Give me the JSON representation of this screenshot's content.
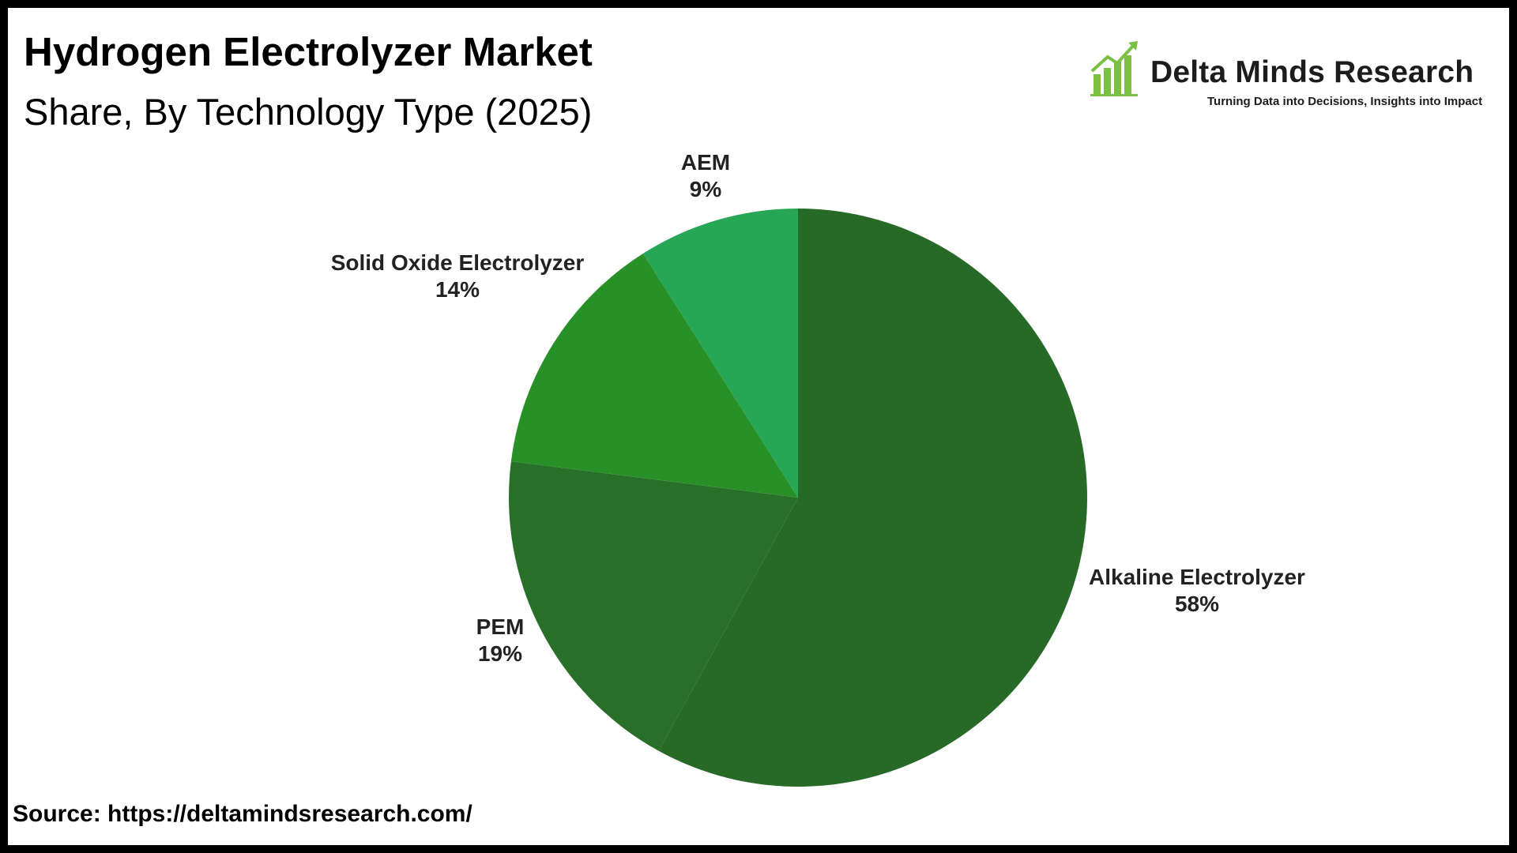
{
  "header": {
    "title": "Hydrogen Electrolyzer Market",
    "subtitle": "Share, By Technology Type (2025)"
  },
  "logo": {
    "name": "Delta Minds Research",
    "tagline": "Turning Data into Decisions, Insights into Impact",
    "icon": "bar-chart-growth-icon",
    "color": "#7ac142"
  },
  "source": "Source: https://deltamindsresearch.com/",
  "chart_data": {
    "type": "pie",
    "title": "Hydrogen Electrolyzer Market",
    "subtitle": "Share, By Technology Type (2025)",
    "start_angle_deg": 0,
    "direction": "clockwise",
    "slices": [
      {
        "label": "Alkaline Electrolyzer",
        "value": 58,
        "value_label": "58%",
        "color": "#276a28"
      },
      {
        "label": "PEM",
        "value": 19,
        "value_label": "19%",
        "color": "#28702a"
      },
      {
        "label": "Solid Oxide Electrolyzer",
        "value": 14,
        "value_label": "14%",
        "color": "#279128"
      },
      {
        "label": "AEM",
        "value": 9,
        "value_label": "9%",
        "color": "#27a655"
      }
    ]
  }
}
